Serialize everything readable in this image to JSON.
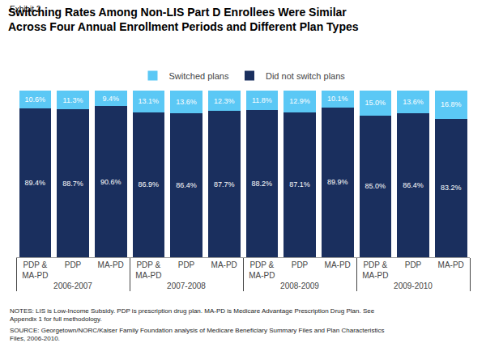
{
  "chart_data": {
    "type": "bar",
    "stacked": true,
    "title": "Switching Rates Among Non-LIS Part D Enrollees Were Similar\nAcross Four Annual Enrollment Periods and Different Plan Types",
    "annotations": [
      "Exhibit 2",
      "NOTES: LIS is Low-Income Subsidy. PDP is prescription drug plan. MA-PD is Medicare Advantage Prescription Drug Plan. See\nAppendix 1 for full methodology.",
      "SOURCE: Georgetown/NORC/Kaiser Family Foundation analysis of Medicare Beneficiary Summary Files and Plan Characteristics\nFiles, 2006-2010."
    ],
    "categories": [
      [
        "2006-2007",
        "PDP &\nMA-PD"
      ],
      [
        "2006-2007",
        "PDP"
      ],
      [
        "2006-2007",
        "MA-PD"
      ],
      [
        "2007-2008",
        "PDP &\nMA-PD"
      ],
      [
        "2007-2008",
        "PDP"
      ],
      [
        "2007-2008",
        "MA-PD"
      ],
      [
        "2008-2009",
        "PDP &\nMA-PD"
      ],
      [
        "2008-2009",
        "PDP"
      ],
      [
        "2008-2009",
        "MA-PD"
      ],
      [
        "2009-2010",
        "PDP &\nMA-PD"
      ],
      [
        "2009-2010",
        "PDP"
      ],
      [
        "2009-2010",
        "MA-PD"
      ]
    ],
    "series": [
      {
        "name": "Switched plans",
        "color": "#5bc8f5",
        "values": [
          10.6,
          11.3,
          9.4,
          13.1,
          13.6,
          12.3,
          11.8,
          12.9,
          10.1,
          15.0,
          13.6,
          16.8
        ],
        "value_labels": [
          "10.6%",
          "11.3%",
          "9.4%",
          "13.1%",
          "13.6%",
          "12.3%",
          "11.8%",
          "12.9%",
          "10.1%",
          "15.0%",
          "13.6%",
          "16.8%"
        ]
      },
      {
        "name": "Did not switch plans",
        "color": "#1a2f5e",
        "values": [
          89.4,
          88.7,
          90.6,
          86.9,
          86.4,
          87.7,
          88.2,
          87.1,
          89.9,
          85.0,
          86.4,
          83.2
        ],
        "value_labels": [
          "89.4%",
          "88.7%",
          "90.6%",
          "86.9%",
          "86.4%",
          "87.7%",
          "88.2%",
          "87.1%",
          "89.9%",
          "85.0%",
          "86.4%",
          "83.2%"
        ]
      }
    ],
    "ylim": [
      0,
      100
    ],
    "grid": false,
    "legend": "top",
    "data_labels": true,
    "tick_labels": "x"
  }
}
